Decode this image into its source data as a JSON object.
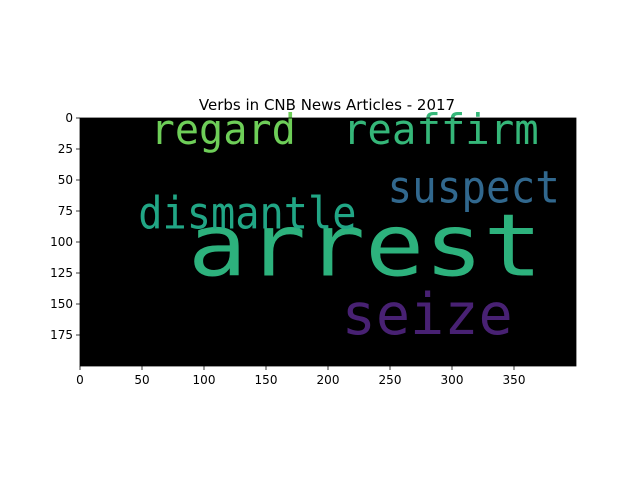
{
  "chart_data": {
    "type": "wordcloud",
    "title": "Verbs in CNB News Articles - 2017",
    "xlabel": "",
    "ylabel": "",
    "xlim": [
      0,
      400
    ],
    "ylim": [
      200,
      0
    ],
    "x_ticks": [
      0,
      50,
      100,
      150,
      200,
      250,
      300,
      350
    ],
    "y_ticks": [
      0,
      25,
      50,
      75,
      100,
      125,
      150,
      175
    ],
    "background": "#000000",
    "grid": false,
    "words": [
      {
        "text": "arrest",
        "x": 87,
        "y": 127,
        "height": 70,
        "length": 286,
        "color": "#2db27d"
      },
      {
        "text": "regard",
        "x": 57,
        "y": 21,
        "height": 34,
        "length": 117,
        "color": "#6ece58"
      },
      {
        "text": "reaffirm",
        "x": 212,
        "y": 21,
        "height": 34,
        "length": 158,
        "color": "#35b779"
      },
      {
        "text": "suspect",
        "x": 248,
        "y": 68,
        "height": 36,
        "length": 139,
        "color": "#31688e"
      },
      {
        "text": "dismantle",
        "x": 47,
        "y": 89,
        "height": 36,
        "length": 176,
        "color": "#21a685"
      },
      {
        "text": "seize",
        "x": 211,
        "y": 174,
        "height": 46,
        "length": 138,
        "color": "#482173"
      }
    ]
  }
}
